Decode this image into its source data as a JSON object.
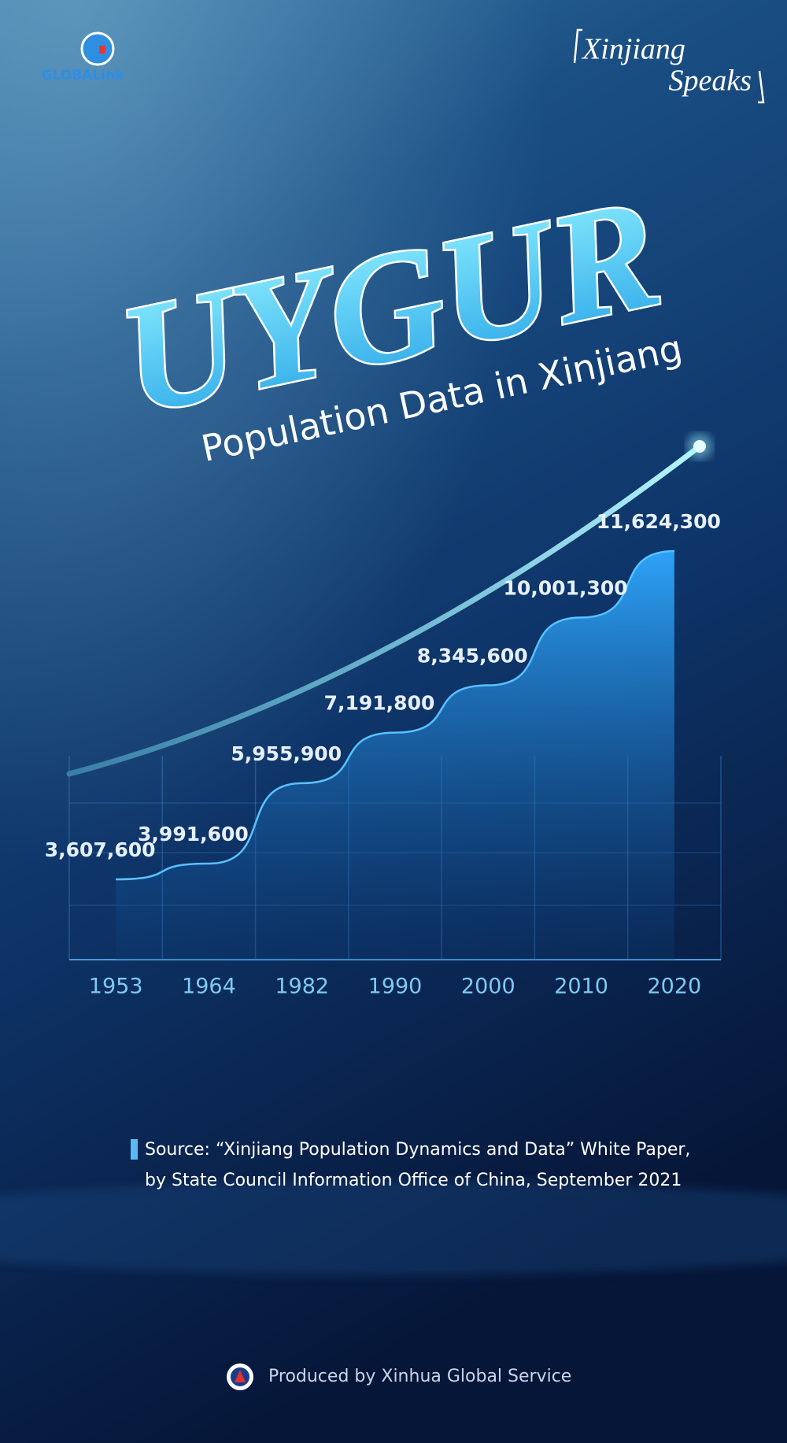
{
  "header": {
    "logo_text": "GLOBALink",
    "brand_title": [
      "Xinjiang",
      "Speaks"
    ]
  },
  "chart_data": {
    "type": "area",
    "title": "UYGUR",
    "subtitle": "Population Data in Xinjiang",
    "categories": [
      "1953",
      "1964",
      "1982",
      "1990",
      "2000",
      "2010",
      "2020"
    ],
    "values": [
      3607600,
      3991600,
      5955900,
      7191800,
      8345600,
      10001300,
      11624300
    ],
    "value_labels": [
      "3,607,600",
      "3,991,600",
      "5,955,900",
      "7,191,800",
      "8,345,600",
      "10,001,300",
      "11,624,300"
    ],
    "color": "#2a9df4",
    "source": [
      "Source: “Xinjiang Population Dynamics and Data”  White Paper,",
      "by State Council Information Office of China, September 2021"
    ]
  },
  "footer": {
    "credit": "Produced by Xinhua Global Service"
  }
}
